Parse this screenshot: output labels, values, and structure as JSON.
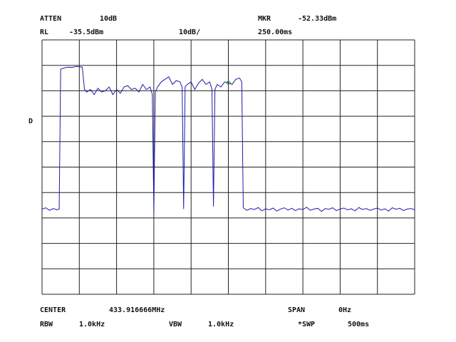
{
  "chart_data": {
    "type": "line",
    "header": {
      "atten_label": "ATTEN",
      "atten": "10dB",
      "mkr_label": "MKR",
      "mkr": "-52.33dBm",
      "rl_label": "RL",
      "rl": "-35.5dBm",
      "scale": "10dB/",
      "mkr_time": "250.00ms",
      "detector": "D"
    },
    "footer": {
      "center_label": "CENTER",
      "center": "433.916666MHz",
      "span_label": "SPAN",
      "span": "0Hz",
      "rbw_label": "RBW",
      "rbw": "1.0kHz",
      "vbw_label": "VBW",
      "vbw": "1.0kHz",
      "swp_label": "*SWP",
      "swp": "500ms"
    },
    "xlim": [
      0,
      500
    ],
    "ylim": [
      -135.5,
      -35.5
    ],
    "xticks": [
      0,
      50,
      100,
      150,
      200,
      250,
      300,
      350,
      400,
      450,
      500
    ],
    "yticks": [
      -135.5,
      -125.5,
      -115.5,
      -105.5,
      -95.5,
      -85.5,
      -75.5,
      -65.5,
      -55.5,
      -45.5,
      -35.5
    ],
    "grid": true,
    "marker": {
      "x": 250,
      "y": -52.33,
      "color": "#2a9a2a"
    },
    "series": [
      {
        "color": "#1c1ca8",
        "x": [
          0,
          5,
          10,
          15,
          20,
          23,
          25,
          30,
          35,
          40,
          45,
          50,
          54,
          57,
          60,
          65,
          70,
          75,
          80,
          85,
          90,
          95,
          100,
          105,
          110,
          115,
          120,
          125,
          130,
          135,
          140,
          145,
          148,
          150,
          152,
          155,
          160,
          165,
          170,
          175,
          180,
          185,
          188,
          190,
          192,
          195,
          200,
          205,
          210,
          215,
          220,
          225,
          228,
          230,
          232,
          235,
          240,
          245,
          250,
          255,
          260,
          265,
          268,
          270,
          275,
          280,
          285,
          290,
          295,
          300,
          305,
          310,
          315,
          320,
          325,
          330,
          335,
          340,
          345,
          350,
          355,
          360,
          365,
          370,
          375,
          380,
          385,
          390,
          395,
          400,
          405,
          410,
          415,
          420,
          425,
          430,
          435,
          440,
          445,
          450,
          455,
          460,
          465,
          470,
          475,
          480,
          485,
          490,
          495,
          500
        ],
        "values": [
          -102,
          -101.5,
          -102.5,
          -101.8,
          -102.3,
          -102,
          -47,
          -46.5,
          -46.2,
          -46.3,
          -46,
          -46,
          -46.2,
          -55,
          -56,
          -55,
          -57,
          -54.5,
          -56,
          -55.5,
          -54,
          -57,
          -55,
          -56.5,
          -54,
          -53.5,
          -55,
          -54.5,
          -56,
          -53,
          -55,
          -54,
          -57,
          -103,
          -56,
          -54,
          -52,
          -51,
          -50,
          -53,
          -51.5,
          -52,
          -54,
          -102,
          -54,
          -53,
          -52,
          -55,
          -52.5,
          -51,
          -53,
          -52,
          -55,
          -101,
          -55,
          -53,
          -54,
          -52,
          -52.33,
          -53,
          -51,
          -50.5,
          -52,
          -101.5,
          -102.5,
          -101.8,
          -102.2,
          -101.4,
          -102.7,
          -101.9,
          -102.3,
          -101.6,
          -102.8,
          -102,
          -101.5,
          -102.4,
          -101.7,
          -102.6,
          -101.9,
          -102.2,
          -101.3,
          -102.5,
          -102,
          -101.7,
          -102.9,
          -101.8,
          -102.1,
          -101.5,
          -102.6,
          -102,
          -101.6,
          -102.3,
          -101.9,
          -102.7,
          -101.4,
          -102.2,
          -101.8,
          -102.5,
          -102,
          -101.6,
          -102.4,
          -101.9,
          -102.8,
          -101.5,
          -102.1,
          -101.7,
          -102.6,
          -102,
          -101.8,
          -102.3
        ]
      }
    ]
  }
}
